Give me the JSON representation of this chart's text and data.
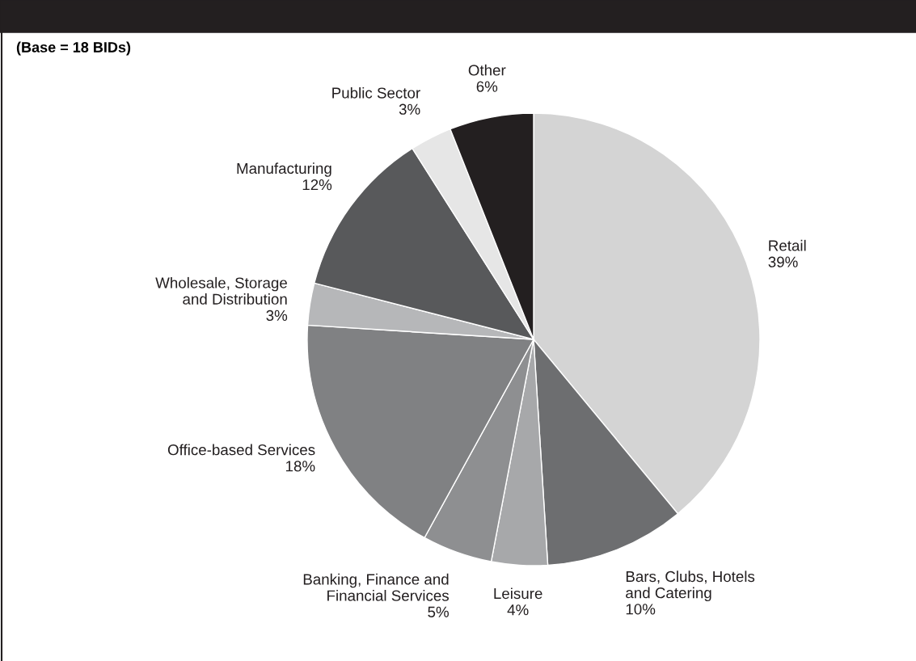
{
  "chart_data": {
    "type": "pie",
    "subtitle": "(Base = 18 BIDs)",
    "categories": [
      "Retail",
      "Bars, Clubs, Hotels\nand Catering",
      "Leisure",
      "Banking, Finance and\nFinancial Services",
      "Office-based Services",
      "Wholesale, Storage\nand Distribution",
      "Manufacturing",
      "Public Sector",
      "Other"
    ],
    "values": [
      39,
      10,
      4,
      5,
      18,
      3,
      12,
      3,
      6
    ],
    "colors": [
      "#d4d4d4",
      "#6d6e70",
      "#a7a8aa",
      "#8e8f91",
      "#808183",
      "#b6b7b9",
      "#58595b",
      "#e6e6e6",
      "#231f20"
    ],
    "value_labels": [
      "39%",
      "10%",
      "4%",
      "5%",
      "18%",
      "3%",
      "12%",
      "3%",
      "6%"
    ],
    "legend": false
  }
}
